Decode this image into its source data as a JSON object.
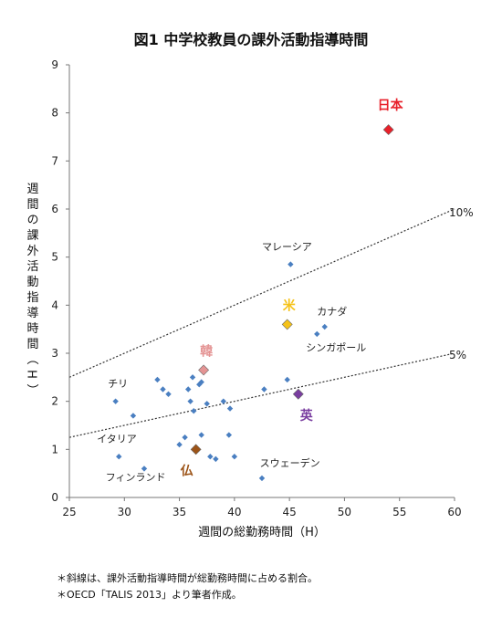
{
  "chart_data": {
    "type": "scatter",
    "title": "図1 中学校教員の課外活動指導時間",
    "xlabel": "週間の総勤務時間（H）",
    "ylabel": "週間の課外活動指導時間（H）",
    "xlim": [
      25,
      60
    ],
    "ylim": [
      0,
      9
    ],
    "xticks": [
      "25",
      "30",
      "35",
      "40",
      "45",
      "50",
      "55",
      "60"
    ],
    "yticks": [
      "0",
      "1",
      "2",
      "3",
      "4",
      "5",
      "6",
      "7",
      "8",
      "9"
    ],
    "grid": false,
    "points": [
      {
        "x": 29.2,
        "y": 2.0
      },
      {
        "x": 29.5,
        "y": 0.85
      },
      {
        "x": 30.8,
        "y": 1.7
      },
      {
        "x": 31.8,
        "y": 0.6
      },
      {
        "x": 33.0,
        "y": 2.45
      },
      {
        "x": 33.5,
        "y": 2.25
      },
      {
        "x": 34.0,
        "y": 2.15
      },
      {
        "x": 35.0,
        "y": 1.1
      },
      {
        "x": 35.5,
        "y": 1.25
      },
      {
        "x": 35.8,
        "y": 2.25
      },
      {
        "x": 36.0,
        "y": 2.0
      },
      {
        "x": 36.2,
        "y": 2.5
      },
      {
        "x": 36.3,
        "y": 1.8
      },
      {
        "x": 36.8,
        "y": 2.35
      },
      {
        "x": 37.0,
        "y": 2.4
      },
      {
        "x": 37.0,
        "y": 1.3
      },
      {
        "x": 37.5,
        "y": 1.95
      },
      {
        "x": 37.8,
        "y": 0.85
      },
      {
        "x": 38.3,
        "y": 0.8
      },
      {
        "x": 39.0,
        "y": 2.0
      },
      {
        "x": 39.5,
        "y": 1.3
      },
      {
        "x": 39.6,
        "y": 1.85
      },
      {
        "x": 40.0,
        "y": 0.85
      },
      {
        "x": 42.5,
        "y": 0.4
      },
      {
        "x": 42.7,
        "y": 2.25
      },
      {
        "x": 44.8,
        "y": 2.45
      },
      {
        "x": 45.1,
        "y": 4.85
      },
      {
        "x": 47.5,
        "y": 3.4
      },
      {
        "x": 48.2,
        "y": 3.55
      }
    ],
    "highlighted": [
      {
        "label": "日本",
        "x": 54.0,
        "y": 7.65,
        "color": "#e8202a"
      },
      {
        "label": "米",
        "x": 44.8,
        "y": 3.6,
        "color": "#f5c218"
      },
      {
        "label": "韓",
        "x": 37.2,
        "y": 2.65,
        "color": "#e49494"
      },
      {
        "label": "英",
        "x": 45.8,
        "y": 2.15,
        "color": "#7a3ea0"
      },
      {
        "label": "仏",
        "x": 36.5,
        "y": 1.0,
        "color": "#9c5418"
      }
    ],
    "country_labels": [
      {
        "text": "チリ",
        "x": 28.5,
        "y": 2.3
      },
      {
        "text": "イタリア",
        "x": 27.5,
        "y": 1.15
      },
      {
        "text": "フィンランド",
        "x": 28.3,
        "y": 0.35
      },
      {
        "text": "マレーシア",
        "x": 42.5,
        "y": 5.15
      },
      {
        "text": "カナダ",
        "x": 47.5,
        "y": 3.8
      },
      {
        "text": "シンガポール",
        "x": 46.5,
        "y": 3.05
      },
      {
        "text": "スウェーデン",
        "x": 42.3,
        "y": 0.65
      }
    ],
    "reference_lines": [
      {
        "label": "10%",
        "slope": 0.1
      },
      {
        "label": "5%",
        "slope": 0.05
      }
    ],
    "colors": {
      "point": "#4a7fc1",
      "axis": "#777777",
      "refline": "#333333"
    }
  },
  "notes": [
    "＊斜線は、課外活動指導時間が総勤務時間に占める割合。",
    "＊OECD「TALIS 2013」より筆者作成。"
  ]
}
